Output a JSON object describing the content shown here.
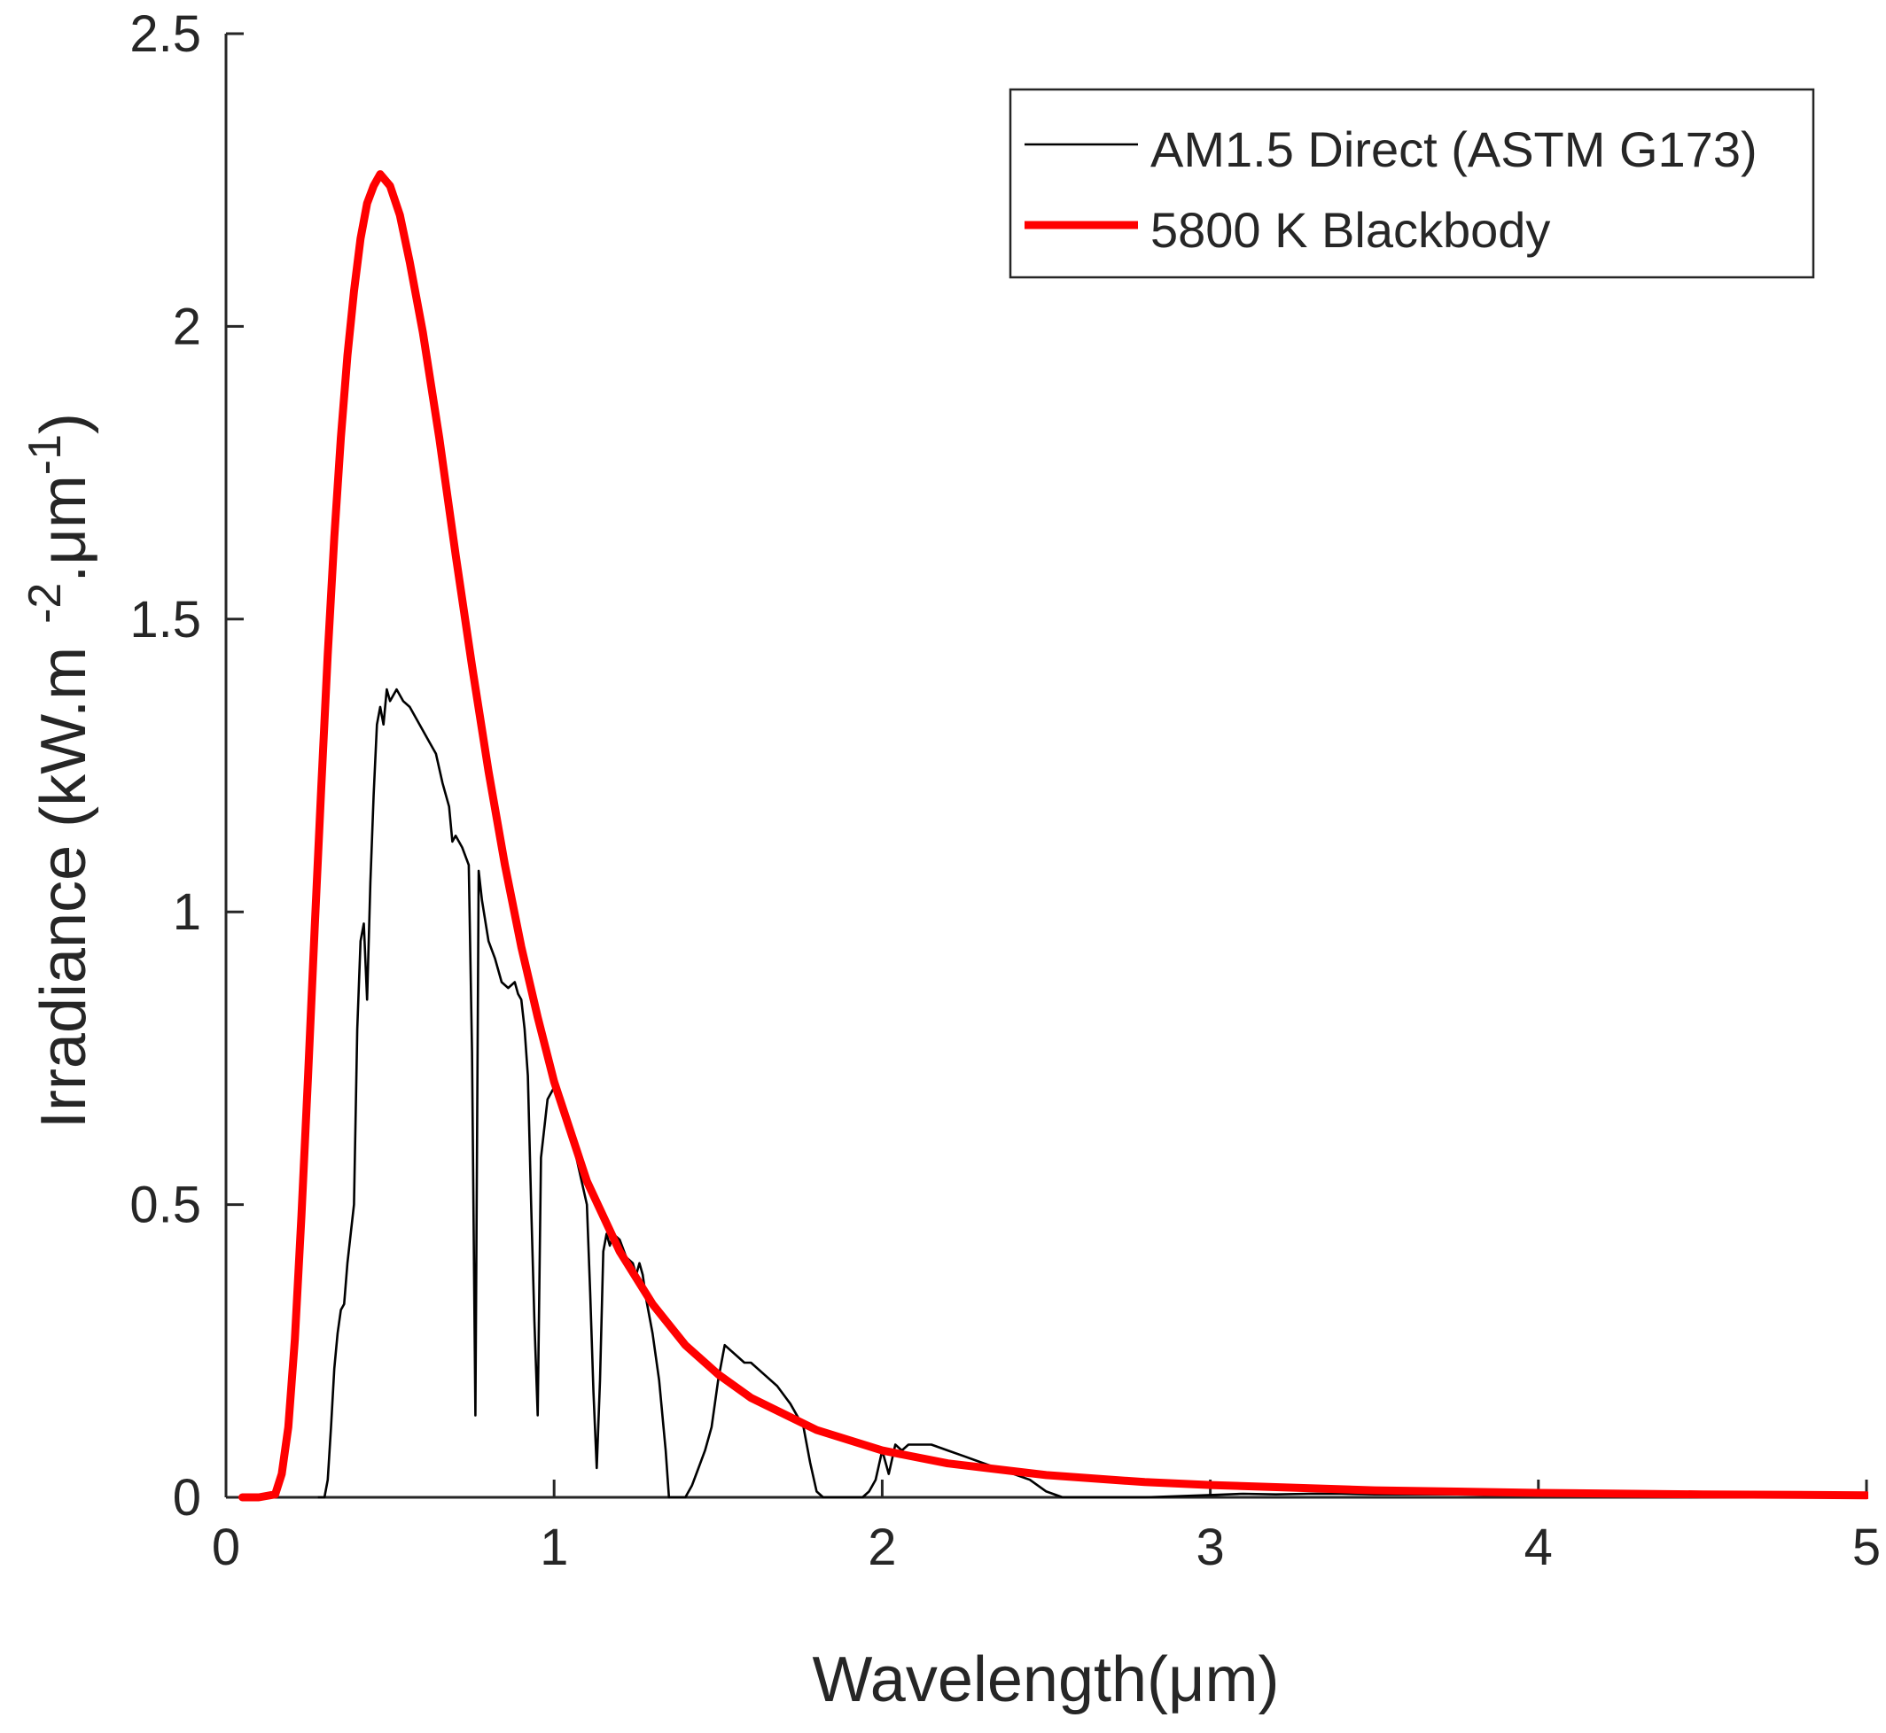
{
  "chart_data": {
    "type": "line",
    "title": "",
    "xlabel": "Wavelength(μm)",
    "ylabel": {
      "main": "Irradiance (kW.m",
      "sup1": "-2",
      "mid": ".μm",
      "sup2": "-1",
      "end": ")"
    },
    "xlim": [
      0,
      5
    ],
    "ylim": [
      0,
      2.5
    ],
    "xticks": [
      0,
      1,
      2,
      3,
      4,
      5
    ],
    "xtick_labels": [
      "0",
      "1",
      "2",
      "3",
      "4",
      "5"
    ],
    "yticks": [
      0,
      0.5,
      1,
      1.5,
      2,
      2.5
    ],
    "ytick_labels": [
      "0",
      "0.5",
      "1",
      "1.5",
      "2",
      "2.5"
    ],
    "grid": false,
    "legend_position": "top-right",
    "series": [
      {
        "name": "AM1.5 Direct (ASTM G173)",
        "color": "#000000",
        "line_width": "thin",
        "x": [
          0.28,
          0.3,
          0.31,
          0.32,
          0.33,
          0.34,
          0.35,
          0.36,
          0.37,
          0.38,
          0.39,
          0.4,
          0.41,
          0.42,
          0.43,
          0.44,
          0.45,
          0.46,
          0.47,
          0.48,
          0.49,
          0.5,
          0.52,
          0.54,
          0.56,
          0.58,
          0.6,
          0.62,
          0.64,
          0.66,
          0.68,
          0.69,
          0.7,
          0.72,
          0.74,
          0.75,
          0.76,
          0.77,
          0.78,
          0.8,
          0.82,
          0.84,
          0.86,
          0.88,
          0.89,
          0.9,
          0.91,
          0.92,
          0.93,
          0.94,
          0.95,
          0.96,
          0.98,
          1.0,
          1.02,
          1.04,
          1.06,
          1.08,
          1.1,
          1.11,
          1.12,
          1.13,
          1.14,
          1.15,
          1.16,
          1.17,
          1.18,
          1.2,
          1.22,
          1.24,
          1.25,
          1.26,
          1.27,
          1.28,
          1.3,
          1.32,
          1.34,
          1.35,
          1.36,
          1.38,
          1.4,
          1.42,
          1.44,
          1.46,
          1.48,
          1.5,
          1.52,
          1.54,
          1.56,
          1.58,
          1.6,
          1.64,
          1.68,
          1.72,
          1.76,
          1.78,
          1.8,
          1.82,
          1.84,
          1.86,
          1.9,
          1.94,
          1.96,
          1.98,
          2.0,
          2.02,
          2.04,
          2.06,
          2.08,
          2.1,
          2.15,
          2.2,
          2.25,
          2.3,
          2.35,
          2.4,
          2.45,
          2.5,
          2.55,
          2.6,
          2.8,
          3.0,
          3.1,
          3.2,
          3.3,
          3.4,
          3.5,
          3.6,
          3.8,
          4.0
        ],
        "y": [
          0.0,
          0.0,
          0.03,
          0.12,
          0.22,
          0.28,
          0.32,
          0.33,
          0.4,
          0.45,
          0.5,
          0.8,
          0.95,
          0.98,
          0.85,
          1.05,
          1.2,
          1.32,
          1.35,
          1.32,
          1.38,
          1.36,
          1.38,
          1.36,
          1.35,
          1.33,
          1.31,
          1.29,
          1.27,
          1.22,
          1.18,
          1.12,
          1.13,
          1.11,
          1.08,
          0.76,
          0.14,
          1.07,
          1.02,
          0.95,
          0.92,
          0.88,
          0.87,
          0.88,
          0.86,
          0.85,
          0.8,
          0.72,
          0.5,
          0.3,
          0.14,
          0.58,
          0.68,
          0.7,
          0.67,
          0.63,
          0.6,
          0.55,
          0.5,
          0.35,
          0.18,
          0.05,
          0.2,
          0.42,
          0.45,
          0.43,
          0.45,
          0.44,
          0.41,
          0.4,
          0.38,
          0.4,
          0.38,
          0.34,
          0.28,
          0.2,
          0.08,
          0.0,
          0.0,
          0.0,
          0.0,
          0.02,
          0.05,
          0.08,
          0.12,
          0.2,
          0.26,
          0.25,
          0.24,
          0.23,
          0.23,
          0.21,
          0.19,
          0.16,
          0.12,
          0.06,
          0.01,
          0.0,
          0.0,
          0.0,
          0.0,
          0.0,
          0.01,
          0.03,
          0.08,
          0.04,
          0.09,
          0.08,
          0.09,
          0.09,
          0.09,
          0.08,
          0.07,
          0.06,
          0.05,
          0.04,
          0.03,
          0.01,
          0.0,
          0.0,
          0.0,
          0.004,
          0.006,
          0.005,
          0.006,
          0.006,
          0.005,
          0.005,
          0.005,
          0.004
        ]
      },
      {
        "name": "5800 K Blackbody",
        "color": "#ff0000",
        "line_width": "thick",
        "x": [
          0.05,
          0.1,
          0.15,
          0.17,
          0.19,
          0.21,
          0.23,
          0.25,
          0.27,
          0.29,
          0.31,
          0.33,
          0.35,
          0.37,
          0.39,
          0.41,
          0.43,
          0.45,
          0.47,
          0.5,
          0.53,
          0.56,
          0.6,
          0.65,
          0.7,
          0.75,
          0.8,
          0.85,
          0.9,
          0.95,
          1.0,
          1.1,
          1.2,
          1.3,
          1.4,
          1.5,
          1.6,
          1.8,
          2.0,
          2.2,
          2.5,
          2.8,
          3.0,
          3.5,
          4.0,
          4.5,
          5.0
        ],
        "y": [
          0.0,
          0.0,
          0.005,
          0.04,
          0.12,
          0.27,
          0.48,
          0.72,
          0.97,
          1.21,
          1.44,
          1.64,
          1.81,
          1.95,
          2.06,
          2.15,
          2.21,
          2.24,
          2.26,
          2.24,
          2.19,
          2.11,
          1.99,
          1.81,
          1.61,
          1.42,
          1.24,
          1.08,
          0.94,
          0.82,
          0.71,
          0.54,
          0.42,
          0.33,
          0.26,
          0.21,
          0.17,
          0.115,
          0.08,
          0.058,
          0.038,
          0.026,
          0.021,
          0.012,
          0.0075,
          0.005,
          0.0035
        ]
      }
    ]
  }
}
